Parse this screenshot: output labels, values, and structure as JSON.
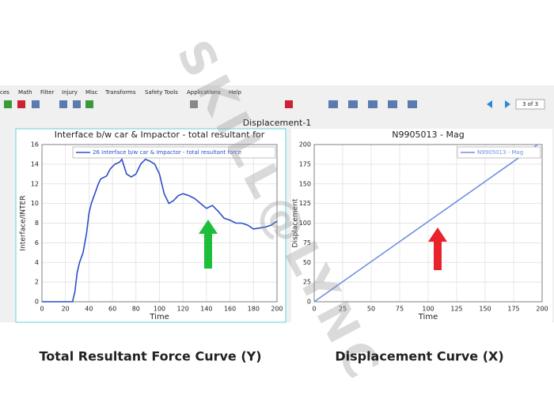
{
  "menu": [
    "ces",
    "Math",
    "Filter",
    "Injury",
    "Misc",
    "Transforms",
    "Safety Tools",
    "Applications",
    "Help"
  ],
  "toolbar": {
    "page": "3 of 3"
  },
  "window_title": "Displacement-1",
  "watermark": "SKILL@LYNC",
  "captions": [
    "Total Resultant Force Curve (Y)",
    "Displacement Curve (X)"
  ],
  "chart_data": [
    {
      "type": "line",
      "title": "Interface b/w car & Impactor - total resultant for",
      "x_label": "Time",
      "y_label": "Interface/INTER",
      "x": [
        0,
        26,
        28,
        30,
        32,
        35,
        38,
        40,
        42,
        45,
        48,
        50,
        55,
        58,
        62,
        66,
        68,
        72,
        76,
        80,
        84,
        88,
        92,
        96,
        100,
        104,
        108,
        112,
        116,
        120,
        125,
        130,
        135,
        140,
        145,
        150,
        155,
        160,
        165,
        170,
        175,
        180,
        185,
        190,
        195,
        200
      ],
      "series": [
        {
          "name": "26 Interface b/w car & Impactor - total resultant force",
          "color": "#2b4fc7",
          "values": [
            0,
            0,
            1,
            3,
            4,
            5,
            7,
            9,
            10,
            11,
            12,
            12.5,
            12.8,
            13.5,
            14,
            14.2,
            14.5,
            13,
            12.7,
            13,
            14,
            14.5,
            14.3,
            14,
            13,
            11,
            10,
            10.3,
            10.8,
            11,
            10.8,
            10.5,
            10,
            9.5,
            9.8,
            9.2,
            8.5,
            8.3,
            8,
            8,
            7.8,
            7.4,
            7.5,
            7.6,
            7.8,
            8.2
          ]
        }
      ],
      "xlim": [
        0,
        200
      ],
      "xticks": [
        0,
        20,
        40,
        60,
        80,
        100,
        120,
        140,
        160,
        180,
        200
      ],
      "ylim": [
        0,
        16
      ],
      "yticks": [
        0,
        2,
        4,
        6,
        8,
        10,
        12,
        14,
        16
      ],
      "grid": true
    },
    {
      "type": "line",
      "title": "N9905013 - Mag",
      "x_label": "Time",
      "y_label": "Displacement",
      "x": [
        0,
        50,
        100,
        150,
        196
      ],
      "series": [
        {
          "name": "N9905013 - Mag",
          "color": "#6f8fe0",
          "values": [
            0,
            51,
            102,
            153,
            200
          ]
        }
      ],
      "xlim": [
        0,
        200
      ],
      "xticks": [
        0,
        25,
        50,
        75,
        100,
        125,
        150,
        175,
        200
      ],
      "ylim": [
        0,
        200
      ],
      "yticks": [
        0,
        25,
        50,
        75,
        100,
        125,
        150,
        175,
        200
      ],
      "grid": true
    }
  ]
}
